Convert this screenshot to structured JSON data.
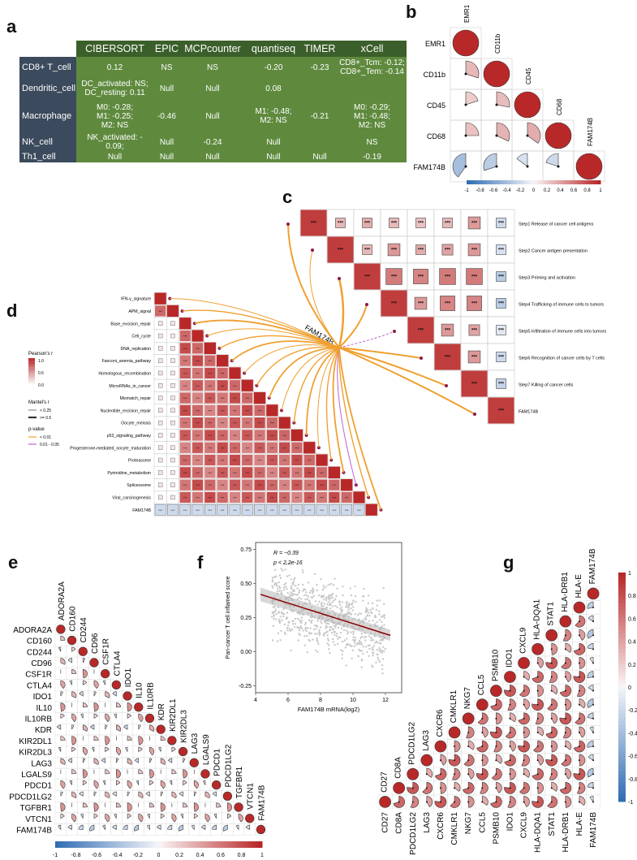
{
  "panels": {
    "a": {
      "label": "a",
      "columns": [
        "CIBERSORT",
        "EPIC",
        "MCPcounter",
        "quantiseq",
        "TIMER",
        "xCell"
      ],
      "rows": [
        {
          "name": "CD8+ T_cell",
          "cells": [
            "0.12",
            "NS",
            "NS",
            "-0.20",
            "-0.23",
            "CD8+_Tcm: -0.12;\nCD8+_Tem: -0.14"
          ]
        },
        {
          "name": "Dendritic_cell",
          "cells": [
            "DC_activated: NS;\nDC_resting: 0.11",
            "Null",
            "Null",
            "0.08",
            "",
            ""
          ]
        },
        {
          "name": "Macrophage",
          "cells": [
            "M0: -0.28;\nM1: -0.25;\nM2: NS",
            "-0.46",
            "Null",
            "M1: -0.48;\nM2: NS",
            "-0.21",
            "M0: -0.29;\nM1: -0.48;\nM2: NS"
          ]
        },
        {
          "name": "NK_cell",
          "cells": [
            "NK_activated: -\n0.09;",
            "Null",
            "-0.24",
            "Null",
            "",
            "NS"
          ]
        },
        {
          "name": "Th1_cell",
          "cells": [
            "Null",
            "Null",
            "Null",
            "Null",
            "Null",
            "-0.19"
          ]
        }
      ]
    },
    "b": {
      "label": "b",
      "vars": [
        "EMR1",
        "CD11b",
        "CD45",
        "CD68",
        "FAM174B"
      ],
      "matrix": [
        [
          1.0,
          null,
          null,
          null,
          null
        ],
        [
          0.3,
          1.0,
          null,
          null,
          null
        ],
        [
          0.2,
          0.28,
          1.0,
          null,
          null
        ],
        [
          0.25,
          0.32,
          0.35,
          1.0,
          null
        ],
        [
          -0.4,
          -0.3,
          -0.15,
          -0.2,
          1.0
        ]
      ],
      "colorbar_ticks": [
        "-1",
        "-0.8",
        "-0.6",
        "-0.4",
        "-0.2",
        "0",
        "0.2",
        "0.4",
        "0.6",
        "0.8",
        "1"
      ]
    },
    "c": {
      "label": "c",
      "steps": [
        "Step1 Release of cancer cell antigens",
        "Step2 Cancer antigen presentation",
        "Step3 Priming and activation",
        "Step4 Trafficking of immune cells to tumors",
        "Step5 Infiltration of immune cells into tumors",
        "Step6 Recognition of cancer cells by T cells",
        "Step7 Killing of cancer cells",
        "FAM174B"
      ],
      "star_label": "***",
      "hub_label": "FAM174B"
    },
    "d": {
      "label": "d",
      "pathways": [
        "IFN-γ_signature",
        "APM_signal",
        "Base_excision_repair",
        "Cell_cycle",
        "DNA_replication",
        "Fanconi_anemia_pathway",
        "Homologous_recombination",
        "MicroRNAs_in_cancer",
        "Mismatch_repair",
        "Nucleotide_excision_repair",
        "Oocyte_meiosis",
        "p53_signaling_pathway",
        "Progesterone-mediated_oocyte_maturation",
        "Proteasome",
        "Pyrimidine_metabolism",
        "Spliceosome",
        "Viral_carcinogenesis",
        "FAM174B"
      ],
      "legend": {
        "pearson_title": "Pearson's r",
        "pearson_ticks": [
          "1.0",
          "0.5",
          "0.0"
        ],
        "mantel_title": "Mantel's r",
        "mantel_items": [
          "< 0.25",
          ">= 0.5"
        ],
        "p_title": "p-value",
        "p_items": [
          "< 0.01",
          "0.01 - 0.05"
        ]
      }
    },
    "e": {
      "label": "e",
      "genes": [
        "ADORA2A",
        "CD160",
        "CD244",
        "CD96",
        "CSF1R",
        "CTLA4",
        "IDO1",
        "IL10",
        "IL10RB",
        "KDR",
        "KIR2DL1",
        "KIR2DL3",
        "LAG3",
        "LGALS9",
        "PDCD1",
        "PDCD1LG2",
        "TGFBR1",
        "VTCN1",
        "FAM174B"
      ],
      "colorbar_ticks": [
        "-1",
        "-0.8",
        "-0.6",
        "-0.4",
        "-0.2",
        "0",
        "0.2",
        "0.4",
        "0.6",
        "0.8",
        "1"
      ]
    },
    "f": {
      "label": "f",
      "stat_r": "R = −0.39",
      "stat_p": "p < 2.2e-16",
      "ylabel": "Pan-cancer T cell inflamed score",
      "xlabel": "FAM174B mRNA(log2)",
      "xticks": [
        "4",
        "6",
        "8",
        "10",
        "12"
      ],
      "yticks": [
        "-0.25",
        "0.00",
        "0.25",
        "0.50",
        "0.75"
      ],
      "fit": {
        "x0": 4.3,
        "y0": 0.42,
        "x1": 12.3,
        "y1": 0.12
      },
      "xlim": [
        4,
        13
      ],
      "ylim": [
        -0.3,
        0.8
      ]
    },
    "g": {
      "label": "g",
      "genes": [
        "CD27",
        "CD8A",
        "PDCD1LG2",
        "LAG3",
        "CXCR6",
        "CMKLR1",
        "NKG7",
        "CCL5",
        "PSMB10",
        "IDO1",
        "CXCL9",
        "HLA-DQA1",
        "STAT1",
        "HLA-DRB1",
        "HLA-E",
        "FAM174B"
      ],
      "colorbar_ticks": [
        "1",
        "0.8",
        "0.6",
        "0.4",
        "0.2",
        "0",
        "-0.2",
        "-0.4",
        "-0.6",
        "-0.8",
        "-1"
      ]
    }
  },
  "colors": {
    "pos": "#c0392b",
    "neg": "#4a7fc1",
    "table_header": "#3b5f2a",
    "table_cell": "#5f8a3e",
    "table_rowhead": "#3b4a5c",
    "orange": "#f0a030",
    "purple": "#c060d0"
  }
}
